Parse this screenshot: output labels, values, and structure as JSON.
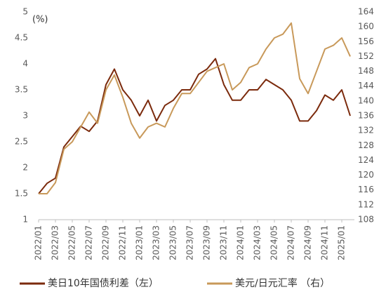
{
  "chart_data": {
    "type": "line",
    "y_label": "(%)",
    "categories": [
      "2022/01",
      null,
      "2022/03",
      null,
      "2022/05",
      null,
      "2022/07",
      null,
      "2022/09",
      null,
      "2022/11",
      null,
      "2023/01",
      null,
      "2023/03",
      null,
      "2023/05",
      null,
      "2023/07",
      null,
      "2023/09",
      null,
      "2023/11",
      null,
      "2024/01",
      null,
      "2024/03",
      null,
      "2024/05",
      null,
      "2024/07",
      null,
      "2024/09",
      null,
      "2024/11",
      null,
      "2025/01",
      null
    ],
    "series": [
      {
        "name": "美日10年国债利差（左）",
        "color": "#7b2a0c",
        "axis": "y",
        "values": [
          1.5,
          1.7,
          1.8,
          2.4,
          2.6,
          2.8,
          2.7,
          2.9,
          3.6,
          3.9,
          3.5,
          3.3,
          3.0,
          3.3,
          2.9,
          3.2,
          3.3,
          3.5,
          3.5,
          3.8,
          3.9,
          4.1,
          3.6,
          3.3,
          3.3,
          3.5,
          3.5,
          3.7,
          3.6,
          3.5,
          3.3,
          2.9,
          2.9,
          3.1,
          3.4,
          3.3,
          3.5,
          3.0
        ]
      },
      {
        "name": "美元/日元汇率  （右）",
        "color": "#c8995a",
        "axis": "y2",
        "values": [
          115,
          115,
          118,
          127,
          129,
          133,
          137,
          134,
          143,
          147,
          141,
          134,
          130,
          133,
          134,
          133,
          138,
          142,
          142,
          145,
          148,
          149,
          150,
          143,
          145,
          149,
          150,
          154,
          157,
          158,
          161,
          146,
          142,
          148,
          154,
          155,
          157,
          152
        ]
      }
    ],
    "ylim": [
      1,
      5
    ],
    "yticks": [
      1,
      1.5,
      2,
      2.5,
      3,
      3.5,
      4,
      4.5,
      5
    ],
    "y2lim": [
      108,
      164
    ],
    "y2ticks": [
      108,
      112,
      116,
      120,
      124,
      128,
      132,
      136,
      140,
      144,
      148,
      152,
      156,
      160,
      164
    ]
  }
}
